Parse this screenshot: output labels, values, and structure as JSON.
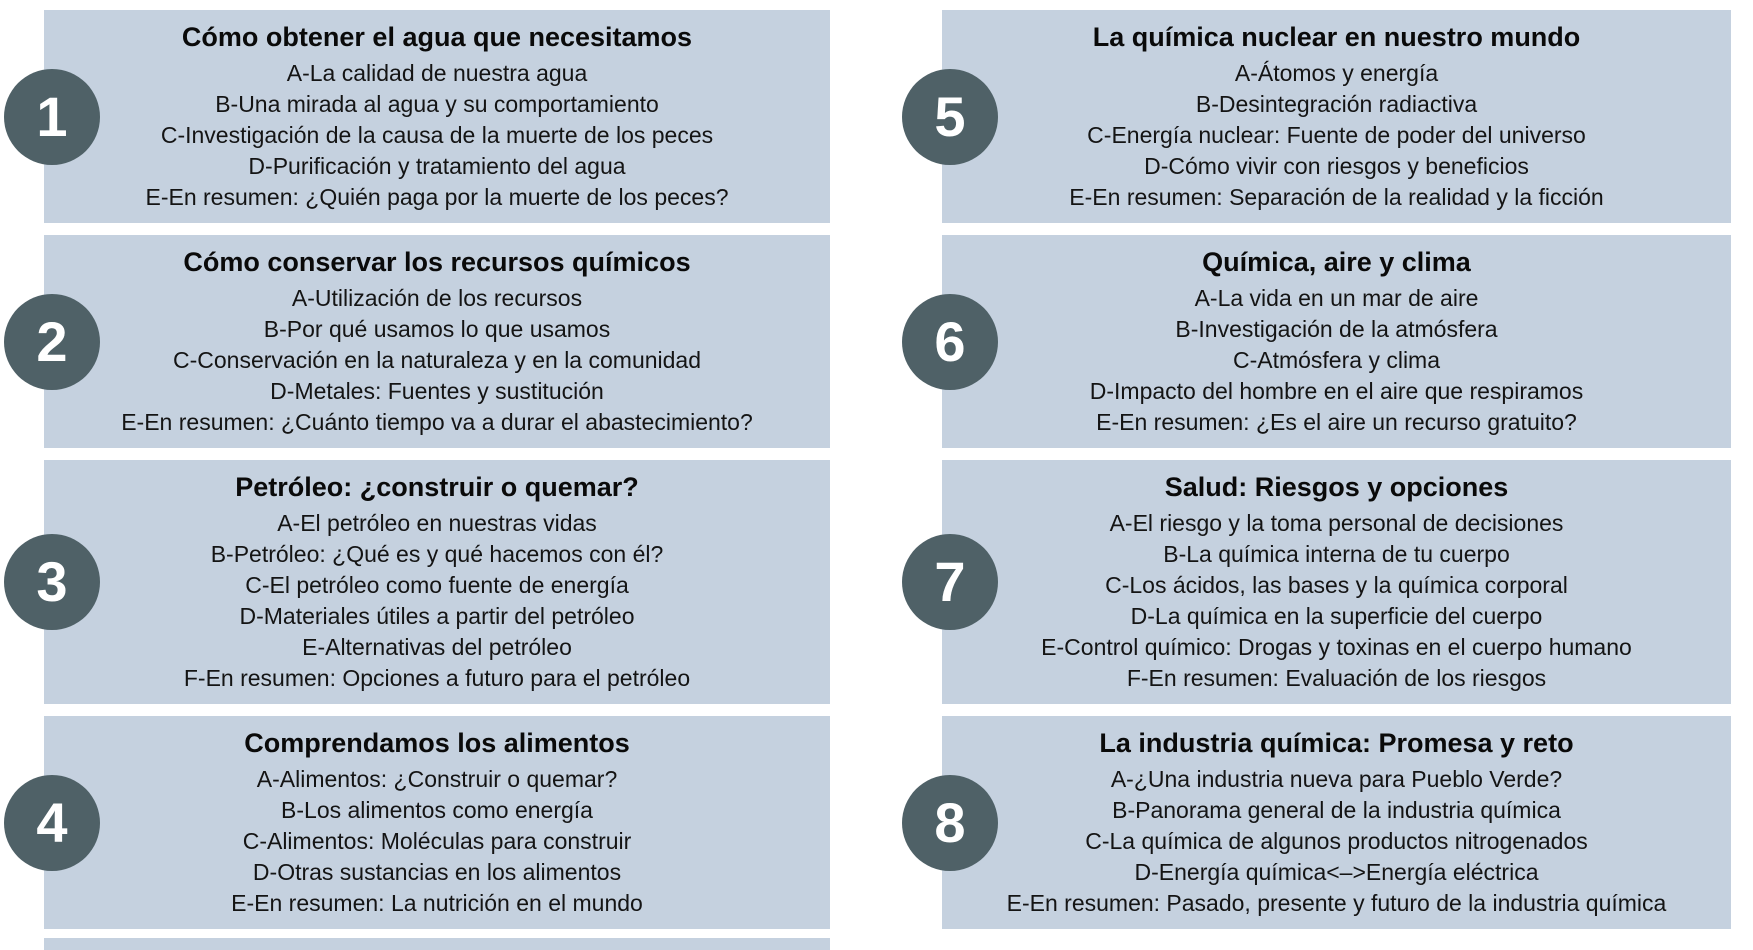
{
  "colors": {
    "page_bg": "#ffffff",
    "box_bg": "#c5d1df",
    "circle_bg": "#4f6167",
    "number_color": "#ffffff",
    "title_color": "#0a0a0a",
    "item_color": "#141414"
  },
  "chapters": [
    {
      "number": "1",
      "title": "Cómo obtener el agua que necesitamos",
      "items": [
        "A-La calidad de nuestra agua",
        "B-Una mirada al agua y su comportamiento",
        "C-Investigación de la causa de la muerte de los peces",
        "D-Purificación y tratamiento del agua",
        "E-En resumen: ¿Quién paga por la muerte de los peces?"
      ]
    },
    {
      "number": "2",
      "title": "Cómo conservar los recursos químicos",
      "items": [
        "A-Utilización de los recursos",
        "B-Por qué usamos lo que usamos",
        "C-Conservación en la naturaleza y en la comunidad",
        "D-Metales: Fuentes y sustitución",
        "E-En resumen: ¿Cuánto tiempo va a durar el abastecimiento?"
      ]
    },
    {
      "number": "3",
      "title": "Petróleo: ¿construir o quemar?",
      "items": [
        "A-El petróleo en nuestras vidas",
        "B-Petróleo: ¿Qué es y qué hacemos con él?",
        "C-El petróleo como fuente de energía",
        "D-Materiales útiles a partir del petróleo",
        "E-Alternativas del petróleo",
        "F-En resumen: Opciones a futuro para el petróleo"
      ]
    },
    {
      "number": "4",
      "title": "Comprendamos los alimentos",
      "items": [
        "A-Alimentos: ¿Construir o quemar?",
        "B-Los alimentos como energía",
        "C-Alimentos: Moléculas para construir",
        "D-Otras sustancias en los alimentos",
        "E-En resumen: La nutrición en el mundo"
      ]
    },
    {
      "number": "5",
      "title": "La química nuclear en nuestro mundo",
      "items": [
        "A-Átomos y energía",
        "B-Desintegración radiactiva",
        "C-Energía nuclear: Fuente de poder del universo",
        "D-Cómo vivir con riesgos y beneficios",
        "E-En resumen: Separación de la realidad y la ficción"
      ]
    },
    {
      "number": "6",
      "title": "Química, aire y clima",
      "items": [
        "A-La vida en un mar de aire",
        "B-Investigación de la atmósfera",
        "C-Atmósfera y clima",
        "D-Impacto del hombre en el aire que respiramos",
        "E-En resumen: ¿Es el aire un recurso gratuito?"
      ]
    },
    {
      "number": "7",
      "title": "Salud: Riesgos y opciones",
      "items": [
        "A-El riesgo y la toma personal de decisiones",
        "B-La química interna de tu cuerpo",
        "C-Los ácidos, las bases y la química corporal",
        "D-La química en la superficie del cuerpo",
        "E-Control químico: Drogas y toxinas en el cuerpo humano",
        "F-En resumen: Evaluación de los riesgos"
      ]
    },
    {
      "number": "8",
      "title": "La industria química: Promesa y reto",
      "items": [
        "A-¿Una industria nueva para Pueblo Verde?",
        "B-Panorama general de la industria química",
        "C-La química de algunos productos nitrogenados",
        "D-Energía química<–>Energía eléctrica",
        "E-En resumen: Pasado, presente y futuro de la industria química"
      ]
    }
  ]
}
